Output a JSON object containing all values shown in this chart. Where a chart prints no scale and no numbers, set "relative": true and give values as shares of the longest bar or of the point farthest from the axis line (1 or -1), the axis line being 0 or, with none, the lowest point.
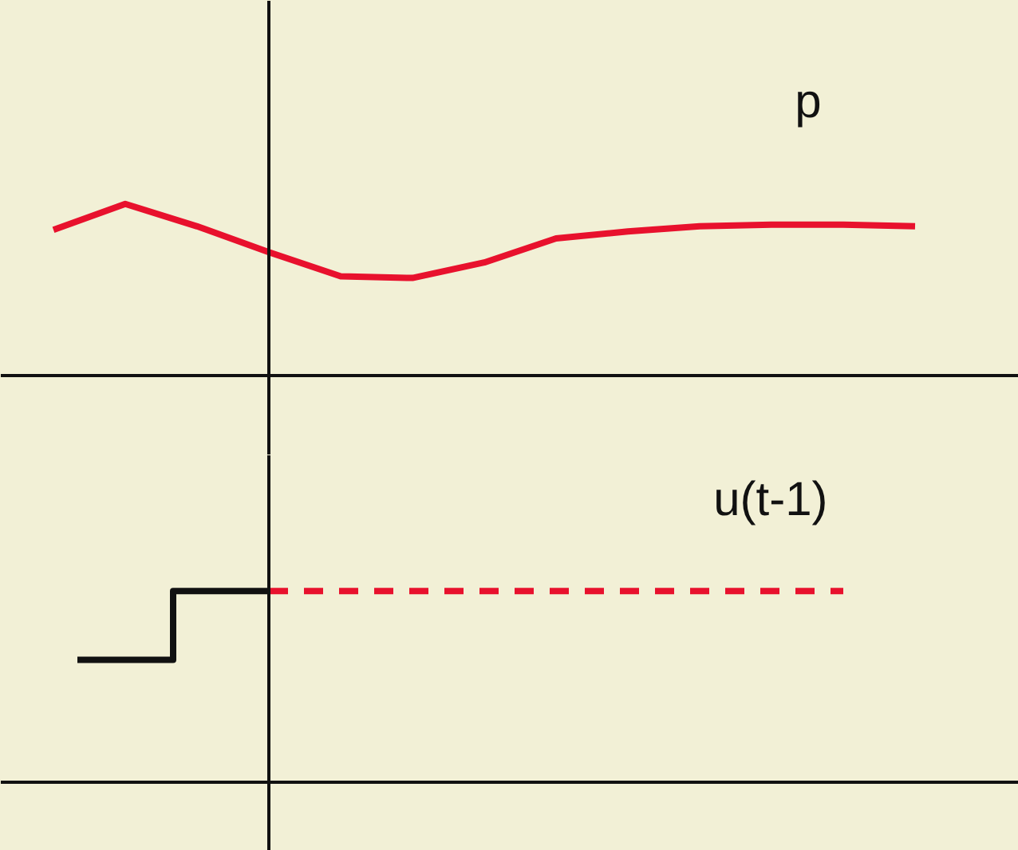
{
  "chart_data": [
    {
      "type": "line",
      "relative": true,
      "annotations": [
        "p"
      ],
      "categories": [
        null,
        null,
        null,
        null,
        null,
        null,
        null,
        null,
        null,
        null,
        null,
        null,
        null
      ],
      "series": [
        {
          "color": "#e8112d",
          "line_style": "solid",
          "values": [
            0.85,
            1.0,
            0.87,
            0.72,
            0.58,
            0.57,
            0.66,
            0.8,
            0.84,
            0.87,
            0.88,
            0.88,
            0.87
          ]
        }
      ]
    },
    {
      "type": "step",
      "relative": true,
      "annotations": [
        "u(t-1)"
      ],
      "categories": [
        null,
        null,
        null,
        null,
        null,
        null,
        null,
        null,
        null
      ],
      "series": [
        {
          "color": "#111111",
          "line_style": "solid",
          "values": [
            0.64,
            1.0,
            1.0,
            null,
            null,
            null,
            null,
            null,
            null
          ]
        },
        {
          "color": "#e8112d",
          "line_style": "dashed",
          "values": [
            null,
            null,
            1.0,
            1.0,
            1.0,
            1.0,
            1.0,
            1.0,
            1.0
          ]
        }
      ]
    }
  ]
}
